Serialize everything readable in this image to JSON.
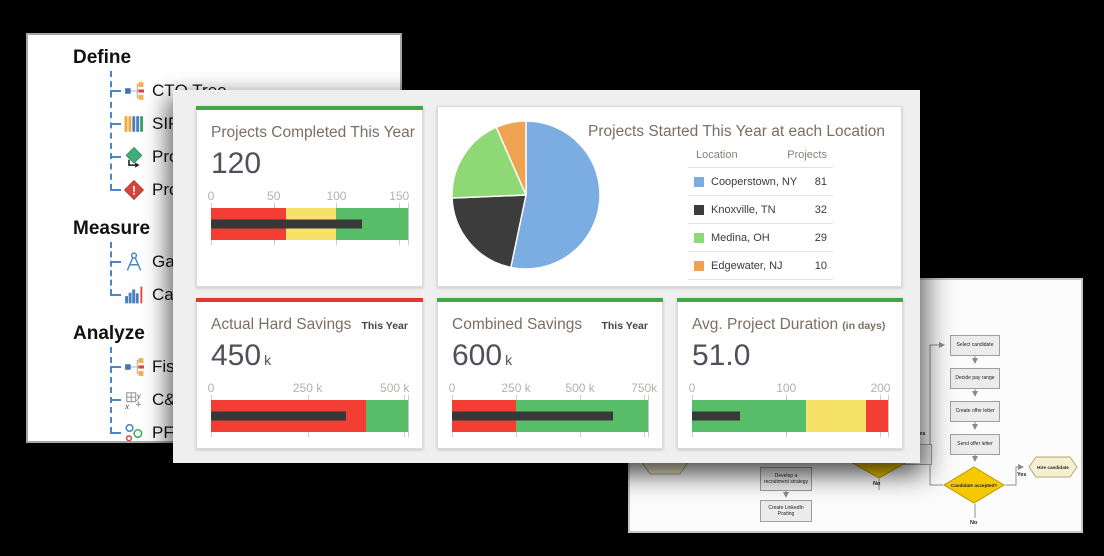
{
  "left_panel": {
    "sections": [
      {
        "title": "Define",
        "items": [
          {
            "label": "CTQ Tree",
            "icon": "ctq-tree-icon"
          },
          {
            "label": "SIPOC",
            "icon": "sipoc-icon"
          },
          {
            "label": "Process M",
            "icon": "process-map-icon"
          },
          {
            "label": "Project R",
            "icon": "project-risk-icon"
          }
        ]
      },
      {
        "title": "Measure",
        "items": [
          {
            "label": "Gage R&R",
            "icon": "gage-rr-icon"
          },
          {
            "label": "Capability",
            "icon": "capability-histogram-icon"
          }
        ]
      },
      {
        "title": "Analyze",
        "items": [
          {
            "label": "Fishbone",
            "icon": "fishbone-icon"
          },
          {
            "label": "C&E Matr",
            "icon": "ce-matrix-icon"
          },
          {
            "label": "PFMEA (F",
            "icon": "pfmea-icon"
          }
        ]
      }
    ]
  },
  "dashboard": {
    "cards": {
      "projects_completed": {
        "title": "Projects Completed This Year",
        "value": "120",
        "accent": "#43a747"
      },
      "locations": {
        "title": "Projects Started This Year at each Location",
        "legend": {
          "location_header": "Location",
          "projects_header": "Projects"
        }
      },
      "hard_savings": {
        "title": "Actual Hard Savings",
        "period": "This Year",
        "value": "450",
        "unit": "k",
        "accent": "#e2382e"
      },
      "combined_savings": {
        "title": "Combined Savings",
        "period": "This Year",
        "value": "600",
        "unit": "k",
        "accent": "#43a747"
      },
      "duration": {
        "title": "Avg. Project Duration",
        "suffix": "(in days)",
        "value": "51.0",
        "accent": "#43a747"
      }
    }
  },
  "chart_data": [
    {
      "id": "projects-completed-bullet",
      "type": "bullet",
      "title": "Projects Completed This Year",
      "value": 120,
      "axis_max": 157,
      "ticks": [
        {
          "label": "0",
          "value": 0
        },
        {
          "label": "50",
          "value": 50
        },
        {
          "label": "100",
          "value": 100
        },
        {
          "label": "150",
          "value": 150
        }
      ],
      "bands": [
        {
          "color": "#f23e33",
          "from": 0,
          "to": 60
        },
        {
          "color": "#f6e169",
          "from": 60,
          "to": 100
        },
        {
          "color": "#57bd69",
          "from": 100,
          "to": 157
        }
      ],
      "marker": 120,
      "marker_color": "#383838"
    },
    {
      "id": "locations-pie",
      "type": "pie",
      "title": "Projects Started This Year at each Location",
      "legend_position": "right",
      "total": 152,
      "slices": [
        {
          "name": "Cooperstown, NY",
          "value": 81,
          "color": "#7cade2"
        },
        {
          "name": "Knoxville, TN",
          "value": 32,
          "color": "#3c3c3c"
        },
        {
          "name": "Medina, OH",
          "value": 29,
          "color": "#8fd876"
        },
        {
          "name": "Edgewater, NJ",
          "value": 10,
          "color": "#efa351"
        }
      ]
    },
    {
      "id": "hard-savings-bullet",
      "type": "bullet",
      "title": "Actual Hard Savings This Year",
      "value": 450,
      "display_value": "450 k",
      "axis_unit": "k",
      "axis_max": 510,
      "ticks": [
        {
          "label": "0",
          "value": 0
        },
        {
          "label": "250 k",
          "value": 250
        },
        {
          "label": "500 k",
          "value": 500,
          "align": "end"
        }
      ],
      "bands": [
        {
          "color": "#f23e33",
          "from": 0,
          "to": 400
        },
        {
          "color": "#57bd69",
          "from": 400,
          "to": 510
        }
      ],
      "marker": 350,
      "marker_color": "#383838"
    },
    {
      "id": "combined-savings-bullet",
      "type": "bullet",
      "title": "Combined Savings This Year",
      "value": 600,
      "display_value": "600 k",
      "axis_unit": "k",
      "axis_max": 765,
      "ticks": [
        {
          "label": "0",
          "value": 0
        },
        {
          "label": "250 k",
          "value": 250
        },
        {
          "label": "500 k",
          "value": 500
        },
        {
          "label": "750k",
          "value": 750
        }
      ],
      "bands": [
        {
          "color": "#f23e33",
          "from": 0,
          "to": 250
        },
        {
          "color": "#57bd69",
          "from": 250,
          "to": 765
        }
      ],
      "marker": 630,
      "marker_color": "#383838"
    },
    {
      "id": "duration-bullet",
      "type": "bullet",
      "title": "Avg. Project Duration (in days)",
      "value": 51.0,
      "axis_max": 208,
      "ticks": [
        {
          "label": "0",
          "value": 0
        },
        {
          "label": "100",
          "value": 100
        },
        {
          "label": "200",
          "value": 200
        }
      ],
      "bands": [
        {
          "color": "#57bd69",
          "from": 0,
          "to": 121
        },
        {
          "color": "#f6e169",
          "from": 121,
          "to": 185
        },
        {
          "color": "#f23e33",
          "from": 185,
          "to": 208
        }
      ],
      "marker": 51,
      "marker_color": "#383838"
    }
  ],
  "flowchart": {
    "steps": [
      "Select candidate",
      "Decide pay range",
      "Create offer letter",
      "Send offer letter"
    ],
    "decision": "Candidate accepted?",
    "terminal": "Hire candidate",
    "side_steps": [
      "Develop a recruitment strategy",
      "Create LinkedIn Posting"
    ],
    "labels": {
      "yes": "Yes",
      "no": "No"
    }
  }
}
